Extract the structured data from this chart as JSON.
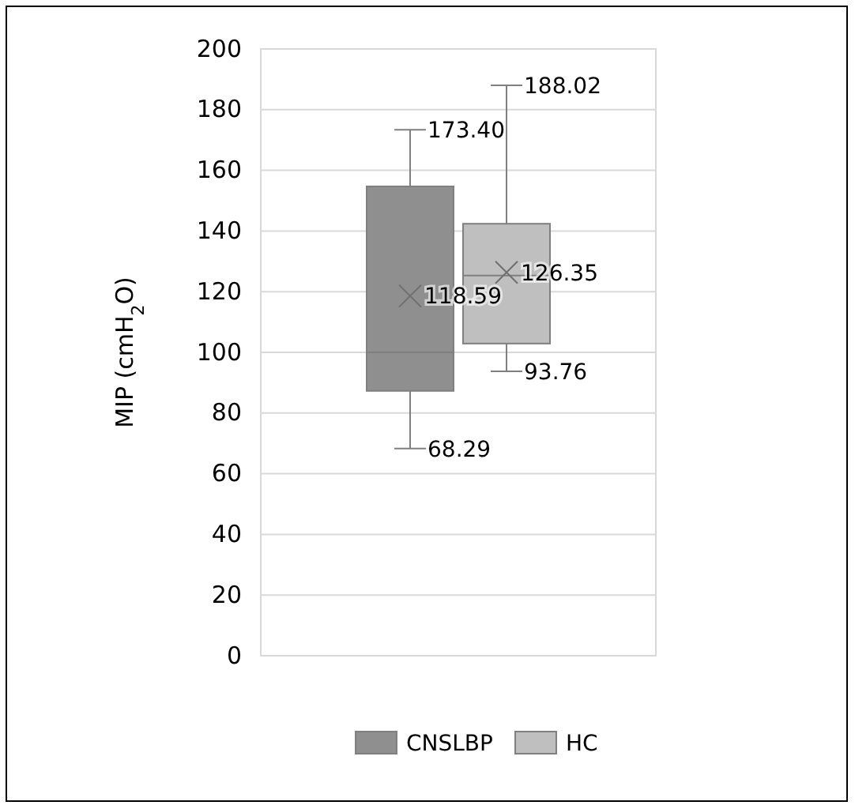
{
  "chart_data": {
    "type": "box",
    "ylabel": "MIP (cmH$_{2}$O)",
    "categories": [
      null
    ],
    "series": [
      {
        "name": "CNSLBP",
        "color": "#8f8f8f",
        "boxes": [
          {
            "low": 68.29,
            "q1": 87.3,
            "median": 100,
            "q3": 154.7,
            "high": 173.4,
            "mean": 118.59
          }
        ]
      },
      {
        "name": "HC",
        "color": "#bfbfbf",
        "boxes": [
          {
            "low": 93.76,
            "q1": 102.9,
            "median": 125.3,
            "q3": 142.4,
            "high": 188.02,
            "mean": 126.35
          }
        ]
      }
    ],
    "annotations": [
      "173.40",
      "118.59",
      "68.29",
      "188.02",
      "126.35",
      "93.76"
    ],
    "ylim": [
      0,
      200
    ],
    "yticks": [
      0,
      20,
      40,
      60,
      80,
      100,
      120,
      140,
      160,
      180,
      200
    ],
    "grid": "y",
    "legend": "bottom"
  }
}
